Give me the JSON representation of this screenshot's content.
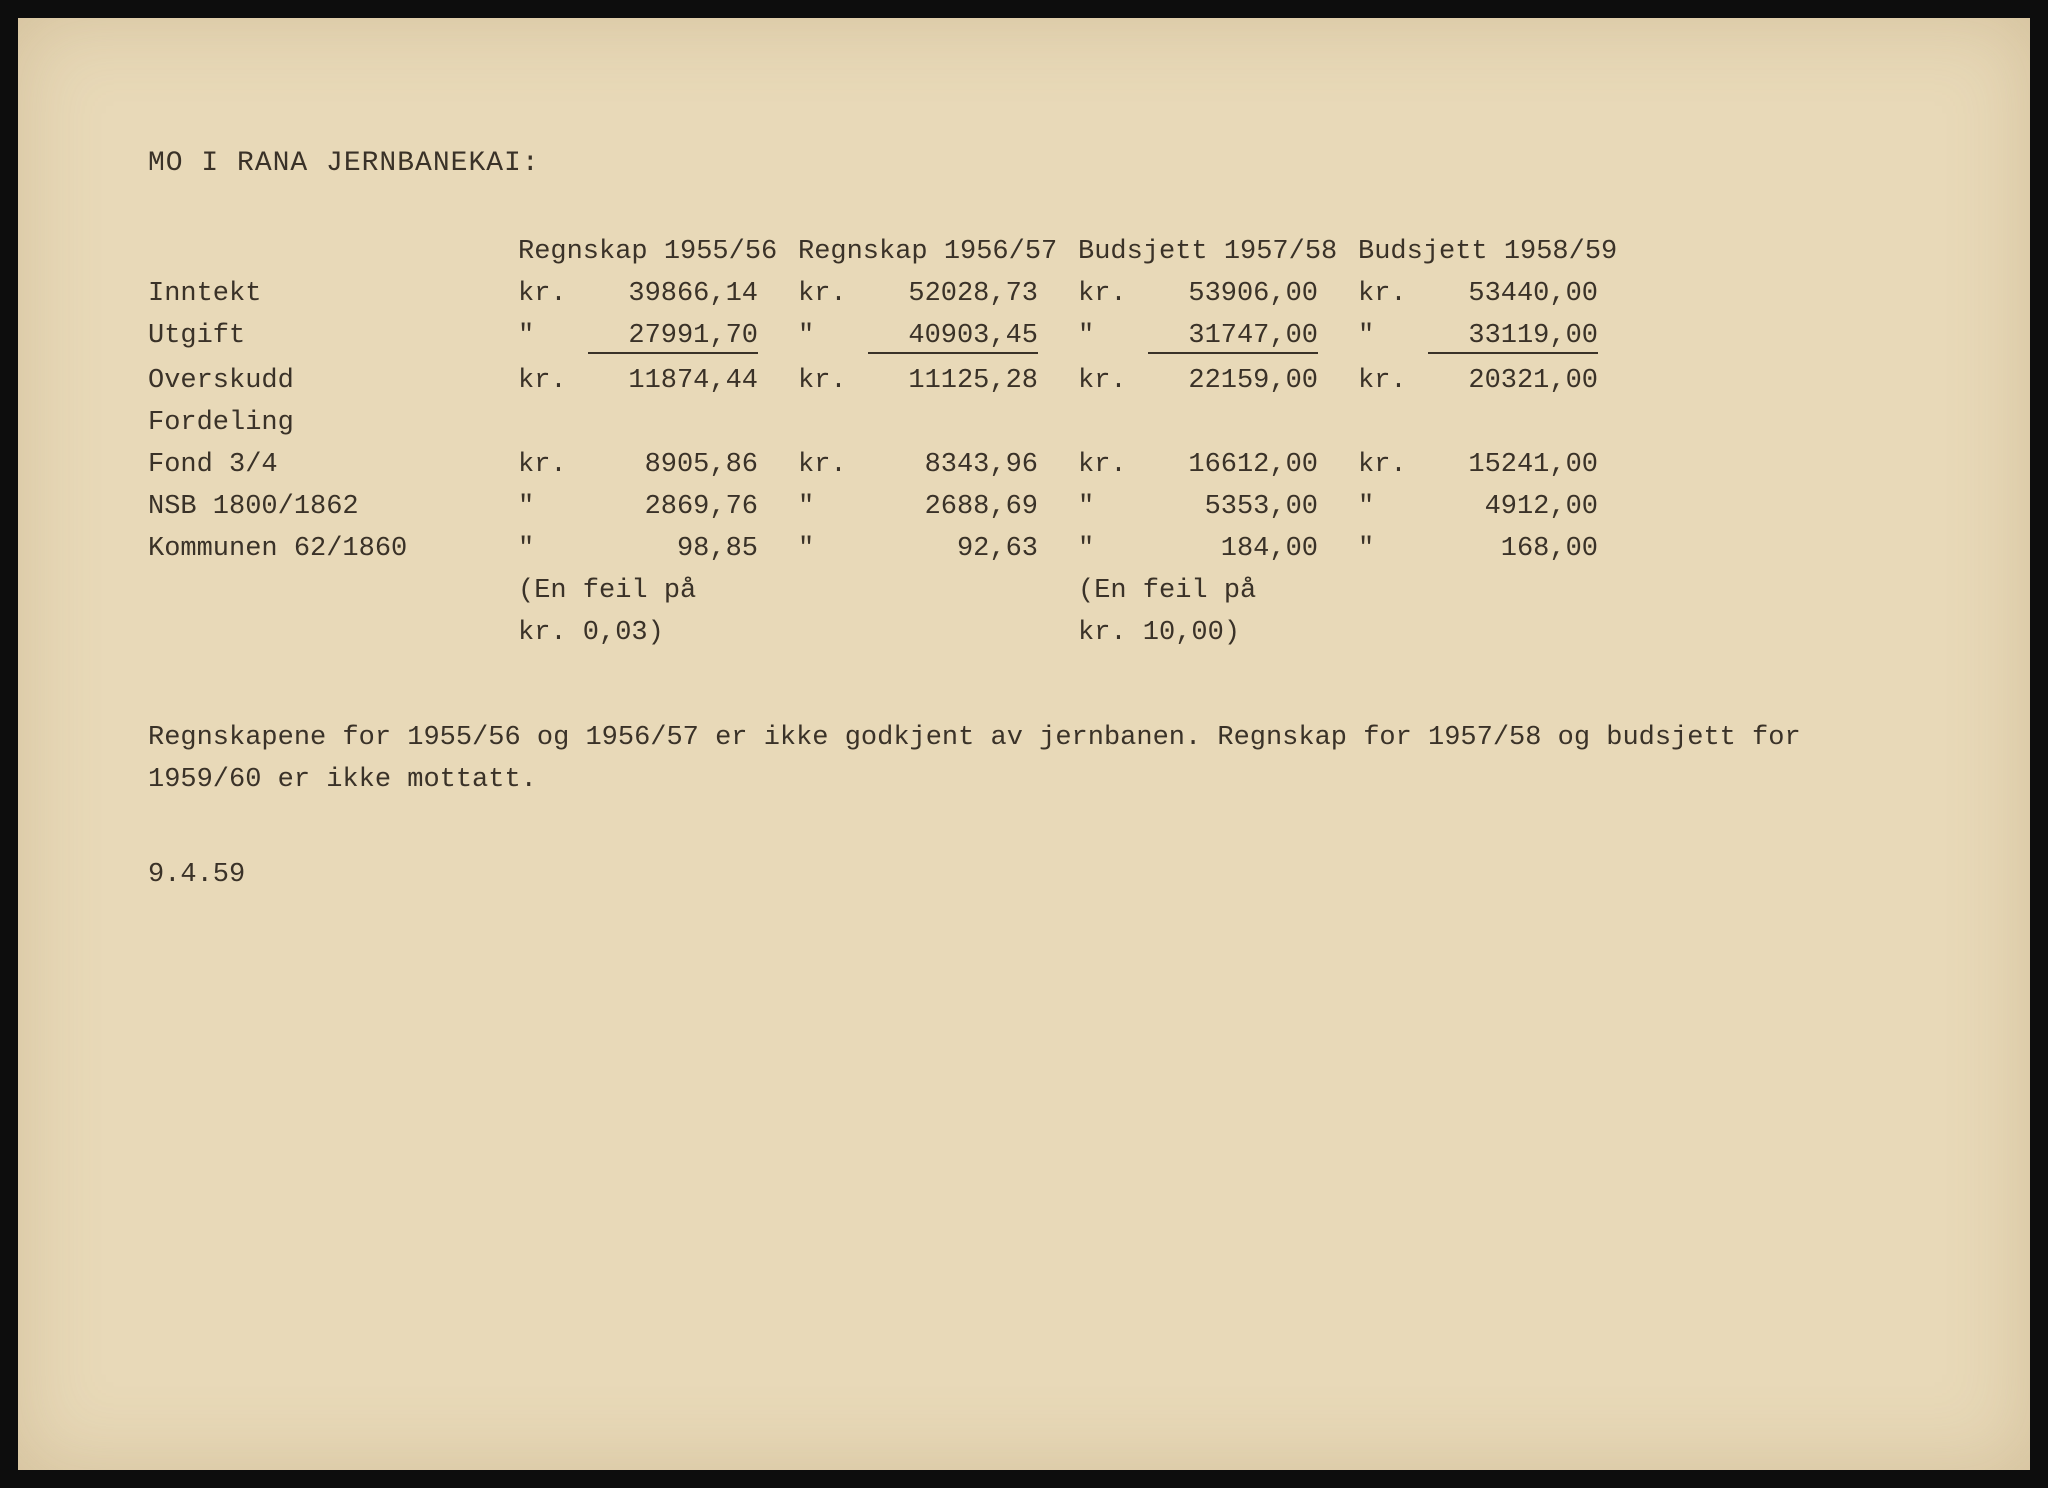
{
  "title": "MO I RANA JERNBANEKAI:",
  "columns": [
    "Regnskap 1955/56",
    "Regnskap 1956/57",
    "Budsjett 1957/58",
    "Budsjett 1958/59"
  ],
  "rows": [
    {
      "label": "Inntekt",
      "cells": [
        {
          "prefix": "kr.",
          "value": "39866,14"
        },
        {
          "prefix": "kr.",
          "value": "52028,73"
        },
        {
          "prefix": "kr.",
          "value": "53906,00"
        },
        {
          "prefix": "kr.",
          "value": "53440,00"
        }
      ]
    },
    {
      "label": "Utgift",
      "underline": true,
      "cells": [
        {
          "prefix": "\"",
          "value": "27991,70"
        },
        {
          "prefix": "\"",
          "value": "40903,45"
        },
        {
          "prefix": "\"",
          "value": "31747,00"
        },
        {
          "prefix": "\"",
          "value": "33119,00"
        }
      ]
    },
    {
      "label": "Overskudd",
      "cells": [
        {
          "prefix": "kr.",
          "value": "11874,44"
        },
        {
          "prefix": "kr.",
          "value": "11125,28"
        },
        {
          "prefix": "kr.",
          "value": "22159,00"
        },
        {
          "prefix": "kr.",
          "value": "20321,00"
        }
      ]
    },
    {
      "label": "Fordeling",
      "cells": [
        {
          "prefix": "",
          "value": ""
        },
        {
          "prefix": "",
          "value": ""
        },
        {
          "prefix": "",
          "value": ""
        },
        {
          "prefix": "",
          "value": ""
        }
      ]
    },
    {
      "label": "Fond 3/4",
      "cells": [
        {
          "prefix": "kr.",
          "value": "8905,86"
        },
        {
          "prefix": "kr.",
          "value": "8343,96"
        },
        {
          "prefix": "kr.",
          "value": "16612,00"
        },
        {
          "prefix": "kr.",
          "value": "15241,00"
        }
      ]
    },
    {
      "label": "NSB 1800/1862",
      "cells": [
        {
          "prefix": "\"",
          "value": "2869,76"
        },
        {
          "prefix": "\"",
          "value": "2688,69"
        },
        {
          "prefix": "\"",
          "value": "5353,00"
        },
        {
          "prefix": "\"",
          "value": "4912,00"
        }
      ]
    },
    {
      "label": "Kommunen 62/1860",
      "cells": [
        {
          "prefix": "\"",
          "value": "98,85"
        },
        {
          "prefix": "\"",
          "value": "92,63"
        },
        {
          "prefix": "\"",
          "value": "184,00"
        },
        {
          "prefix": "\"",
          "value": "168,00"
        }
      ]
    }
  ],
  "error_notes": {
    "col1_line1": "(En feil på",
    "col1_line2": "kr. 0,03)",
    "col3_line1": "(En feil på",
    "col3_line2": "kr. 10,00)"
  },
  "footer_note": "Regnskapene for 1955/56 og 1956/57 er ikke godkjent av jernbanen. Regnskap for 1957/58 og budsjett for 1959/60 er ikke mottatt.",
  "date": "9.4.59",
  "style": {
    "background": "#e8d9b8",
    "text_color": "#3a3228",
    "font_family": "Courier New",
    "font_size_pt": 20,
    "page_border_color": "#0d0d0d"
  }
}
